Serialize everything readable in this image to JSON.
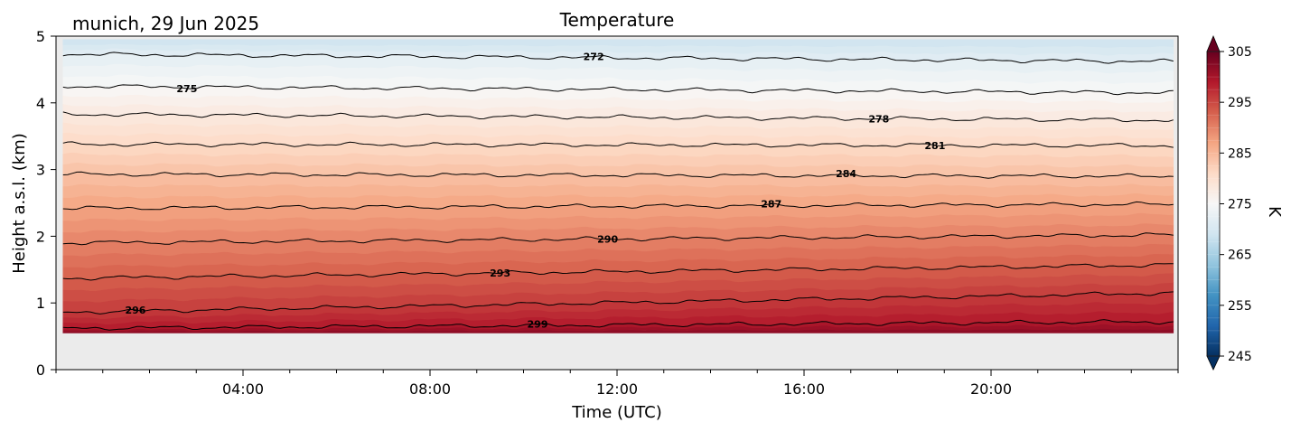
{
  "chart_data": {
    "type": "heatmap",
    "title": "Temperature",
    "subtitle": "munich, 29 Jun 2025",
    "xlabel": "Time (UTC)",
    "ylabel": "Height a.s.l. (km)",
    "xlim_hours": [
      0,
      24
    ],
    "xticks": [
      {
        "hour": 4,
        "label": "04:00"
      },
      {
        "hour": 8,
        "label": "08:00"
      },
      {
        "hour": 12,
        "label": "12:00"
      },
      {
        "hour": 16,
        "label": "16:00"
      },
      {
        "hour": 20,
        "label": "20:00"
      }
    ],
    "ylim_km": [
      0,
      5
    ],
    "yticks": [
      {
        "value": 0,
        "label": "0"
      },
      {
        "value": 1,
        "label": "1"
      },
      {
        "value": 2,
        "label": "2"
      },
      {
        "value": 3,
        "label": "3"
      },
      {
        "value": 4,
        "label": "4"
      },
      {
        "value": 5,
        "label": "5"
      }
    ],
    "data_extent": {
      "x_hours": [
        0.15,
        23.9
      ],
      "height_km": [
        0.55,
        4.95
      ]
    },
    "background_color": "#ebebeb",
    "contours": [
      {
        "level": 272,
        "height_start_km": 4.73,
        "height_end_km": 4.62,
        "label": "272",
        "label_hour": 11.5
      },
      {
        "level": 275,
        "height_start_km": 4.25,
        "height_end_km": 4.15,
        "label": "275",
        "label_hour": 2.8
      },
      {
        "level": 278,
        "height_start_km": 3.83,
        "height_end_km": 3.74,
        "label": "278",
        "label_hour": 17.6
      },
      {
        "level": 281,
        "height_start_km": 3.38,
        "height_end_km": 3.36,
        "label": "281",
        "label_hour": 18.8
      },
      {
        "level": 284,
        "height_start_km": 2.93,
        "height_end_km": 2.9,
        "label": "284",
        "label_hour": 16.9
      },
      {
        "level": 287,
        "height_start_km": 2.42,
        "height_end_km": 2.48,
        "label": "287",
        "label_hour": 15.3
      },
      {
        "level": 290,
        "height_start_km": 1.9,
        "height_end_km": 2.02,
        "label": "290",
        "label_hour": 11.8
      },
      {
        "level": 293,
        "height_start_km": 1.37,
        "height_end_km": 1.57,
        "label": "293",
        "label_hour": 9.5
      },
      {
        "level": 296,
        "height_start_km": 0.86,
        "height_end_km": 1.15,
        "label": "296",
        "label_hour": 1.7
      },
      {
        "level": 299,
        "height_start_km": 0.62,
        "height_end_km": 0.72,
        "label": "299",
        "label_hour": 10.3
      }
    ],
    "colorbar": {
      "label": "K",
      "vmin": 245,
      "vmax": 305,
      "ticks": [
        245,
        255,
        265,
        275,
        285,
        295,
        305
      ],
      "colors": [
        "#053061",
        "#2166ac",
        "#4393c3",
        "#92c5de",
        "#d1e5f0",
        "#f7f7f7",
        "#fddbc7",
        "#f4a582",
        "#d6604d",
        "#b2182b",
        "#67001f"
      ]
    }
  }
}
